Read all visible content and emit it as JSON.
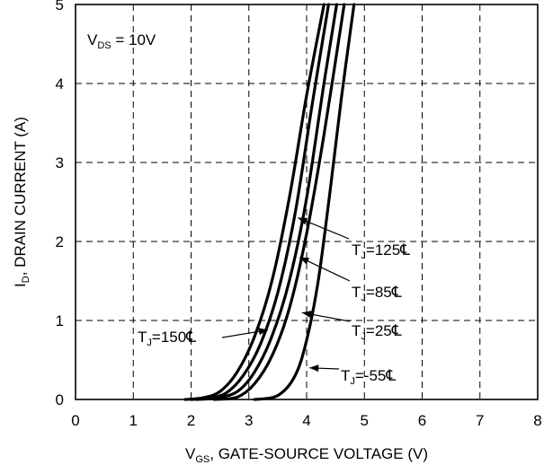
{
  "chart_data": {
    "type": "line",
    "title": "",
    "xlabel": {
      "main": "V",
      "sub": "GS",
      "rest": ", GATE-SOURCE VOLTAGE (V)"
    },
    "ylabel": {
      "main": "I",
      "sub": "D",
      "rest": ", DRAIN CURRENT (A)"
    },
    "xlim": [
      0,
      8
    ],
    "ylim": [
      0,
      5
    ],
    "xticks": [
      "0",
      "1",
      "2",
      "3",
      "4",
      "5",
      "6",
      "7",
      "8"
    ],
    "yticks": [
      "0",
      "1",
      "2",
      "3",
      "4",
      "5"
    ],
    "grid": true,
    "condition": {
      "main": "V",
      "sub": "DS",
      "rest": " = 10V"
    },
    "series": [
      {
        "name": {
          "main": "T",
          "sub": "J",
          "rest": "=150℄"
        },
        "x": [
          1.9,
          2.2,
          2.5,
          2.8,
          3.1,
          3.4,
          3.7,
          4.0,
          4.3
        ],
        "y": [
          0.0,
          0.02,
          0.1,
          0.35,
          0.8,
          1.5,
          2.55,
          3.85,
          5.0
        ]
      },
      {
        "name": {
          "main": "T",
          "sub": "J",
          "rest": "=125℄"
        },
        "x": [
          2.0,
          2.3,
          2.6,
          2.9,
          3.2,
          3.5,
          3.8,
          4.1,
          4.38
        ],
        "y": [
          0.0,
          0.02,
          0.08,
          0.3,
          0.7,
          1.35,
          2.35,
          3.75,
          5.0
        ]
      },
      {
        "name": {
          "main": "T",
          "sub": "J",
          "rest": "=85℄"
        },
        "x": [
          2.1,
          2.45,
          2.8,
          3.1,
          3.4,
          3.7,
          4.0,
          4.3,
          4.52
        ],
        "y": [
          0.0,
          0.02,
          0.1,
          0.35,
          0.8,
          1.5,
          2.55,
          4.0,
          5.0
        ]
      },
      {
        "name": {
          "main": "T",
          "sub": "J",
          "rest": "=25℄"
        },
        "x": [
          2.4,
          2.8,
          3.1,
          3.4,
          3.7,
          4.0,
          4.3,
          4.65
        ],
        "y": [
          0.0,
          0.03,
          0.2,
          0.55,
          1.15,
          2.1,
          3.35,
          5.0
        ]
      },
      {
        "name": {
          "main": "T",
          "sub": "J",
          "rest": "=-55℄"
        },
        "x": [
          3.1,
          3.5,
          3.8,
          4.0,
          4.2,
          4.4,
          4.6,
          4.82
        ],
        "y": [
          0.0,
          0.05,
          0.3,
          0.75,
          1.5,
          2.6,
          3.8,
          5.0
        ]
      }
    ],
    "annotations": [
      {
        "series": 0,
        "text": {
          "main": "T",
          "sub": "J",
          "rest": "=150℄"
        },
        "point": [
          3.33,
          0.88
        ]
      },
      {
        "series": 1,
        "text": {
          "main": "T",
          "sub": "J",
          "rest": "=125℄"
        },
        "point": [
          3.85,
          2.3
        ]
      },
      {
        "series": 2,
        "text": {
          "main": "T",
          "sub": "J",
          "rest": "=85℄"
        },
        "point": [
          3.88,
          1.8
        ]
      },
      {
        "series": 3,
        "text": {
          "main": "T",
          "sub": "J",
          "rest": "=25℄"
        },
        "point": [
          3.92,
          1.1
        ]
      },
      {
        "series": 4,
        "text": {
          "main": "T",
          "sub": "J",
          "rest": "=-55℄"
        },
        "point": [
          4.05,
          0.4
        ]
      }
    ]
  }
}
